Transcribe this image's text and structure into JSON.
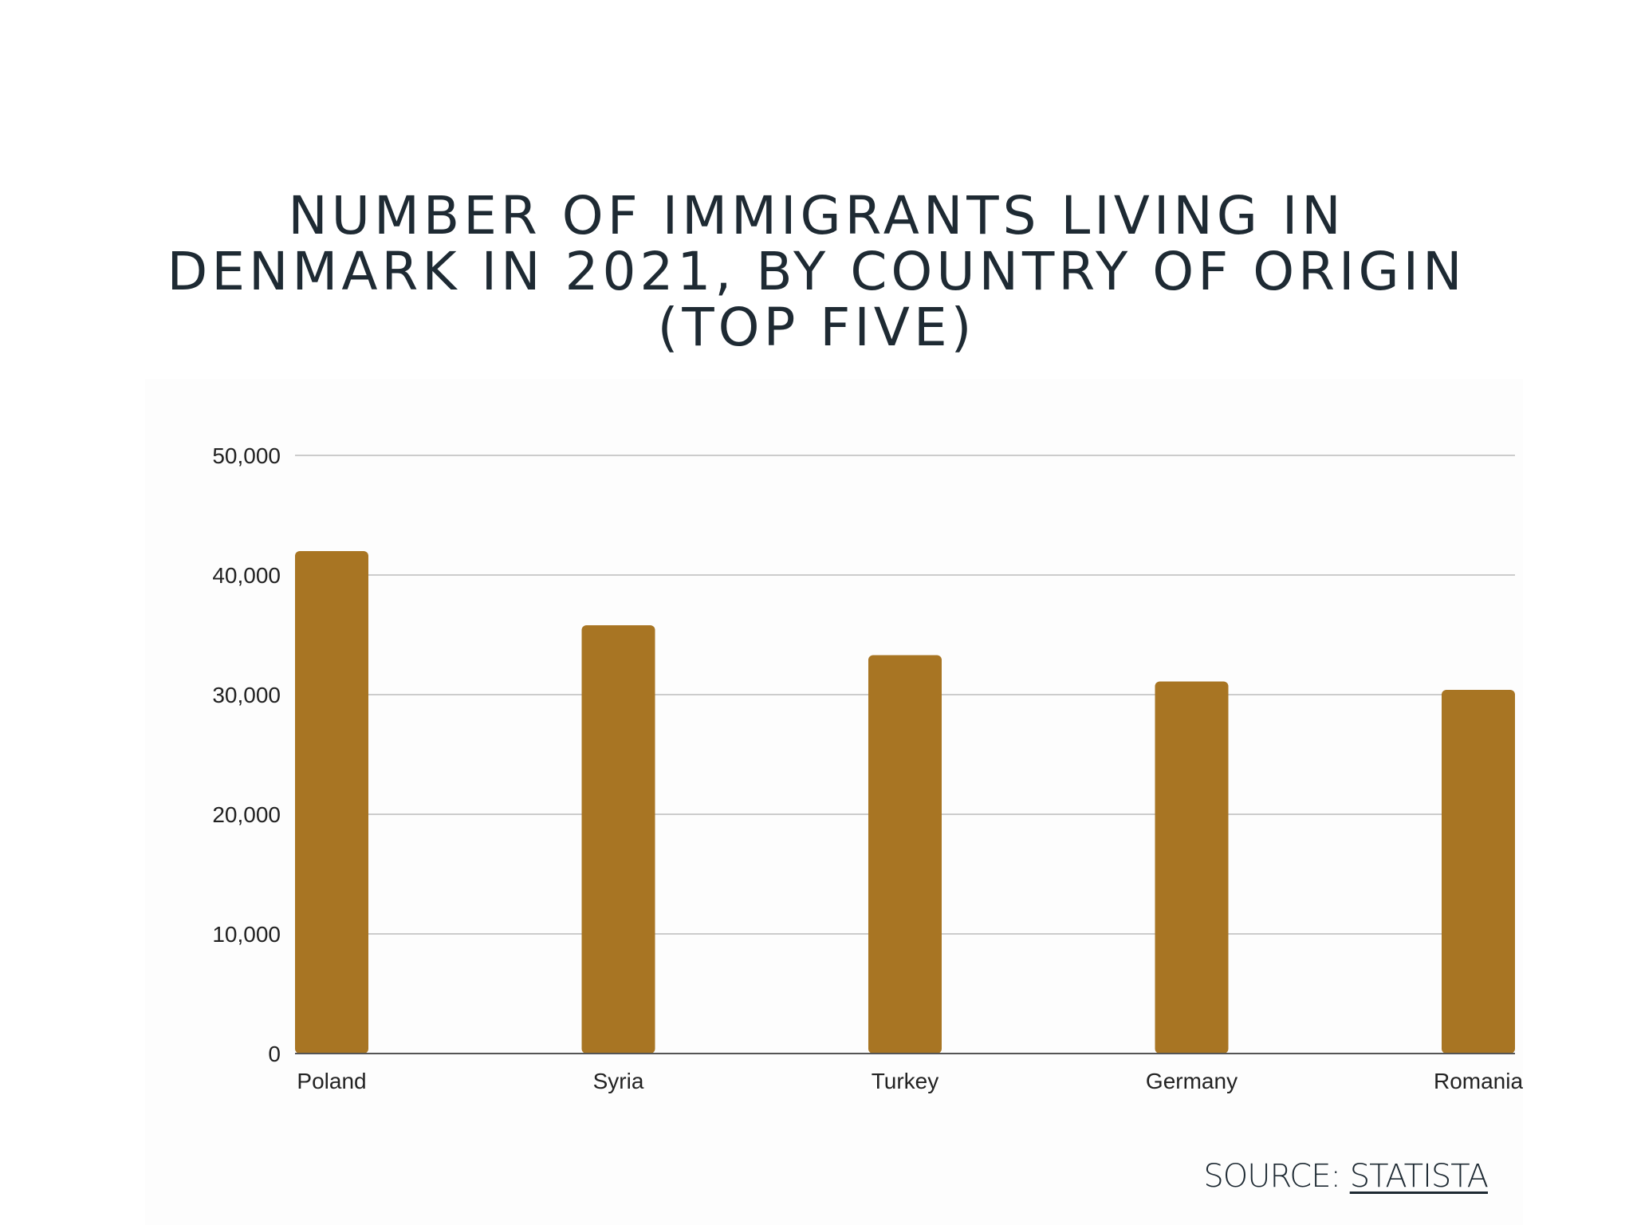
{
  "chart_data": {
    "type": "bar",
    "title_lines": [
      "NUMBER OF IMMIGRANTS LIVING IN",
      "DENMARK IN 2021, BY COUNTRY OF ORIGIN",
      "(TOP FIVE)"
    ],
    "categories": [
      "Poland",
      "Syria",
      "Turkey",
      "Germany",
      "Romania"
    ],
    "values": [
      42000,
      35800,
      33300,
      31100,
      30400
    ],
    "yticks": [
      {
        "value": 0,
        "label": "0"
      },
      {
        "value": 10000,
        "label": "10,000"
      },
      {
        "value": 20000,
        "label": "20,000"
      },
      {
        "value": 30000,
        "label": "30,000"
      },
      {
        "value": 40000,
        "label": "40,000"
      },
      {
        "value": 50000,
        "label": "50,000"
      }
    ],
    "ylim": [
      0,
      50000
    ],
    "xlabel": "",
    "ylabel": "",
    "grid": true,
    "legend": "none",
    "bar_color": "#a87523",
    "grid_color": "#cccccc",
    "axis_color": "#555555"
  },
  "source": {
    "prefix": "SOURCE: ",
    "link_text": "STATISTA"
  }
}
